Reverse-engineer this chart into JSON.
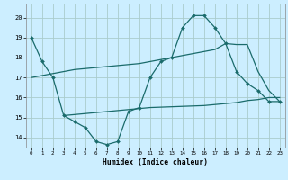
{
  "bg_color": "#cceeff",
  "grid_color": "#aacccc",
  "line_color": "#1a6b6b",
  "xlabel": "Humidex (Indice chaleur)",
  "xlim": [
    -0.5,
    23.5
  ],
  "ylim": [
    13.5,
    20.7
  ],
  "yticks": [
    14,
    15,
    16,
    17,
    18,
    19,
    20
  ],
  "xticks": [
    0,
    1,
    2,
    3,
    4,
    5,
    6,
    7,
    8,
    9,
    10,
    11,
    12,
    13,
    14,
    15,
    16,
    17,
    18,
    19,
    20,
    21,
    22,
    23
  ],
  "line1_x": [
    0,
    1,
    2,
    3,
    4,
    5,
    6,
    7,
    8,
    9,
    10,
    11,
    12,
    13,
    14,
    15,
    16,
    17,
    18,
    19,
    20,
    21,
    22,
    23
  ],
  "line1_y": [
    19.0,
    17.8,
    17.0,
    15.1,
    14.8,
    14.5,
    13.8,
    13.65,
    13.8,
    15.3,
    15.5,
    17.0,
    17.8,
    18.0,
    19.5,
    20.1,
    20.1,
    19.5,
    18.7,
    17.3,
    16.7,
    16.35,
    15.8,
    15.8
  ],
  "line2_x": [
    0,
    1,
    2,
    3,
    4,
    5,
    6,
    7,
    8,
    9,
    10,
    11,
    12,
    13,
    14,
    15,
    16,
    17,
    18,
    19,
    20,
    21,
    22,
    23
  ],
  "line2_y": [
    17.0,
    17.1,
    17.2,
    17.3,
    17.4,
    17.45,
    17.5,
    17.55,
    17.6,
    17.65,
    17.7,
    17.8,
    17.9,
    18.0,
    18.1,
    18.2,
    18.3,
    18.4,
    18.7,
    18.65,
    18.65,
    17.3,
    16.35,
    15.8
  ],
  "line3_x": [
    3,
    4,
    5,
    6,
    7,
    8,
    9,
    10,
    11,
    12,
    13,
    14,
    15,
    16,
    17,
    18,
    19,
    20,
    21,
    22,
    23
  ],
  "line3_y": [
    15.1,
    15.15,
    15.2,
    15.25,
    15.3,
    15.35,
    15.4,
    15.45,
    15.5,
    15.52,
    15.54,
    15.56,
    15.58,
    15.6,
    15.65,
    15.7,
    15.75,
    15.85,
    15.9,
    16.0,
    16.0
  ]
}
